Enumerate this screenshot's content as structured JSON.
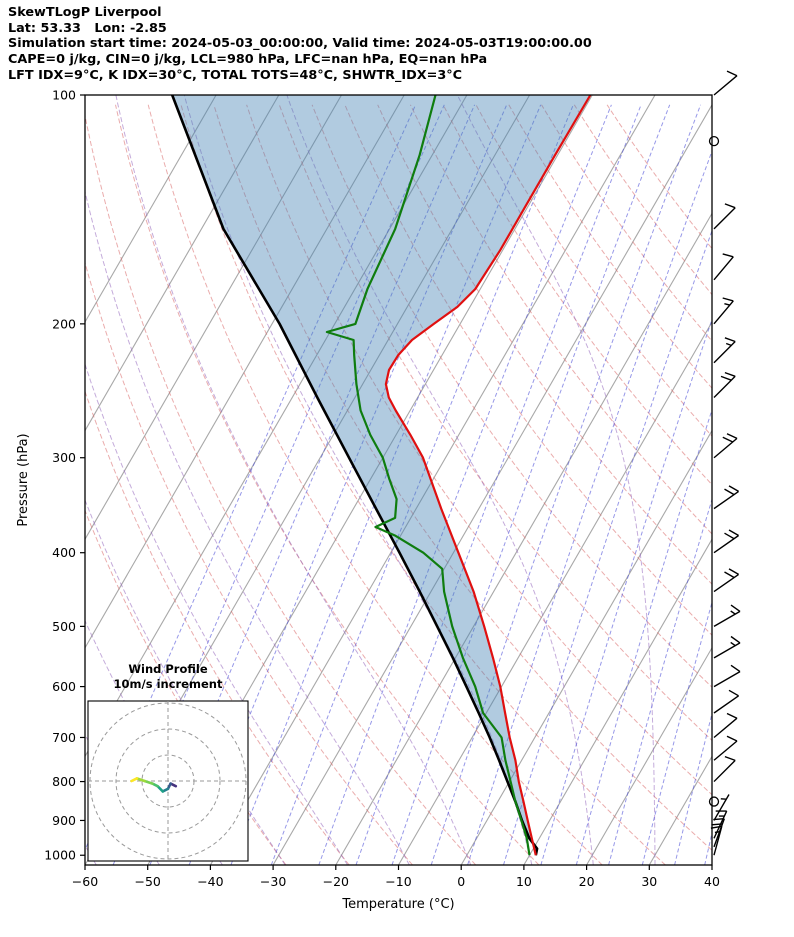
{
  "header": {
    "title": "SkewTLogP Liverpool",
    "location_line": "Lat: 53.33   Lon: -2.85",
    "time_line": "Simulation start time: 2024-05-03_00:00:00, Valid time: 2024-05-03T19:00:00.00",
    "indices_line1": "CAPE=0 j/kg, CIN=0 j/kg, LCL=980 hPa, LFC=nan hPa, EQ=nan hPa",
    "indices_line2": "LFT IDX=9°C, K IDX=30°C, TOTAL TOTS=48°C, SHWTR_IDX=3°C"
  },
  "chart_data": {
    "type": "line",
    "subtype": "skew-t-log-p",
    "xlabel": "Temperature (°C)",
    "ylabel": "Pressure (hPa)",
    "xlim": [
      -60,
      40
    ],
    "plim": [
      100,
      1030
    ],
    "skew_rotation_deg": 30,
    "x_ticks": [
      -60,
      -50,
      -40,
      -30,
      -20,
      -10,
      0,
      10,
      20,
      30,
      40
    ],
    "y_ticks": [
      100,
      200,
      300,
      400,
      500,
      600,
      700,
      800,
      900,
      1000
    ],
    "background_lines": {
      "isotherms": {
        "color": "#a8a8a8",
        "start": -110,
        "end": 40,
        "step": 10
      },
      "dry_adiabats": {
        "color": "#d96a6a",
        "start": -30,
        "end": 160,
        "step": 10
      },
      "moist_adiabats": {
        "color": "#9467bd",
        "values": [
          -60,
          -50,
          -40,
          -30,
          -20,
          -10,
          0,
          10,
          20,
          30
        ]
      },
      "mixing_ratio_lines": {
        "color": "#5254d9",
        "values_g_kg": [
          0.01,
          0.02,
          0.04,
          0.08,
          0.16,
          0.3,
          0.6,
          1,
          1.6,
          2.6,
          4,
          6,
          9,
          13,
          18,
          25,
          34,
          45
        ]
      }
    },
    "series": [
      {
        "name": "temperature",
        "label": "Temperature",
        "color": "#e01010",
        "width": 2.2,
        "pressure": [
          1000,
          950,
          900,
          850,
          800,
          750,
          700,
          650,
          600,
          550,
          500,
          450,
          400,
          350,
          300,
          280,
          260,
          250,
          240,
          230,
          220,
          210,
          200,
          190,
          180,
          160,
          140,
          120,
          100
        ],
        "values": [
          11.0,
          8.8,
          6.5,
          4.1,
          1.5,
          -1.0,
          -4.0,
          -7.0,
          -10.2,
          -14.0,
          -18.3,
          -23.2,
          -29.2,
          -36.0,
          -43.6,
          -47.7,
          -52.3,
          -54.6,
          -56.3,
          -57.1,
          -57.0,
          -56.2,
          -54.2,
          -52.0,
          -50.8,
          -50.4,
          -50.4,
          -50.4,
          -50.3
        ]
      },
      {
        "name": "dewpoint",
        "label": "Dewpoint",
        "color": "#0f7d0f",
        "width": 2.2,
        "pressure": [
          1000,
          950,
          900,
          850,
          800,
          750,
          700,
          650,
          600,
          550,
          500,
          450,
          420,
          400,
          380,
          370,
          360,
          340,
          320,
          300,
          280,
          260,
          240,
          220,
          210,
          205,
          200,
          180,
          150,
          120,
          100
        ],
        "values": [
          10.0,
          8.0,
          5.5,
          2.8,
          0.2,
          -2.6,
          -5.3,
          -10.5,
          -14.2,
          -18.8,
          -23.4,
          -27.9,
          -30.3,
          -34.8,
          -40.8,
          -44.8,
          -42.5,
          -44.0,
          -47.0,
          -50.0,
          -54.1,
          -57.9,
          -61.0,
          -64.0,
          -65.5,
          -70.5,
          -66.7,
          -68.0,
          -69.1,
          -72.0,
          -75.0
        ]
      },
      {
        "name": "parcel",
        "label": "Parcel profile",
        "color": "#000000",
        "width": 2.6,
        "pressure": [
          1000,
          980,
          950,
          900,
          850,
          800,
          750,
          700,
          650,
          600,
          550,
          500,
          450,
          400,
          350,
          300,
          250,
          200,
          150,
          100
        ],
        "values": [
          11.0,
          10.6,
          8.4,
          5.6,
          2.8,
          -0.3,
          -3.6,
          -7.2,
          -11.2,
          -15.6,
          -20.4,
          -25.8,
          -31.8,
          -38.6,
          -46.4,
          -55.4,
          -66.0,
          -78.8,
          -96.5,
          -117.0
        ]
      }
    ],
    "shading": {
      "between": [
        "parcel",
        "temperature"
      ],
      "color": "rgba(70,130,180,0.42)"
    },
    "wind_barbs": [
      {
        "p": 100,
        "speed_kt": 10,
        "dir_deg": 50
      },
      {
        "p": 115,
        "speed_kt": 0,
        "dir_deg": 0
      },
      {
        "p": 150,
        "speed_kt": 10,
        "dir_deg": 45
      },
      {
        "p": 175,
        "speed_kt": 12,
        "dir_deg": 40
      },
      {
        "p": 200,
        "speed_kt": 15,
        "dir_deg": 40
      },
      {
        "p": 225,
        "speed_kt": 15,
        "dir_deg": 45
      },
      {
        "p": 250,
        "speed_kt": 18,
        "dir_deg": 45
      },
      {
        "p": 300,
        "speed_kt": 20,
        "dir_deg": 50
      },
      {
        "p": 350,
        "speed_kt": 22,
        "dir_deg": 55
      },
      {
        "p": 400,
        "speed_kt": 20,
        "dir_deg": 55
      },
      {
        "p": 450,
        "speed_kt": 18,
        "dir_deg": 55
      },
      {
        "p": 500,
        "speed_kt": 15,
        "dir_deg": 60
      },
      {
        "p": 550,
        "speed_kt": 15,
        "dir_deg": 60
      },
      {
        "p": 600,
        "speed_kt": 12,
        "dir_deg": 60
      },
      {
        "p": 650,
        "speed_kt": 10,
        "dir_deg": 55
      },
      {
        "p": 700,
        "speed_kt": 12,
        "dir_deg": 50
      },
      {
        "p": 750,
        "speed_kt": 10,
        "dir_deg": 50
      },
      {
        "p": 800,
        "speed_kt": 8,
        "dir_deg": 45
      },
      {
        "p": 850,
        "speed_kt": 0,
        "dir_deg": 0
      },
      {
        "p": 900,
        "speed_kt": 5,
        "dir_deg": 30
      },
      {
        "p": 950,
        "speed_kt": 15,
        "dir_deg": 25
      },
      {
        "p": 975,
        "speed_kt": 18,
        "dir_deg": 20
      },
      {
        "p": 1000,
        "speed_kt": 15,
        "dir_deg": 15
      }
    ],
    "hodograph": {
      "title_line1": "Wind Profile",
      "title_line2": "10m/s increment",
      "ring_interval_ms": 10,
      "rings_max_ms": 30,
      "trace": [
        {
          "u": 3,
          "v": -2,
          "color": "#440154"
        },
        {
          "u": 1,
          "v": -1,
          "color": "#46327e"
        },
        {
          "u": 0,
          "v": -3,
          "color": "#375c8d"
        },
        {
          "u": -2,
          "v": -4,
          "color": "#27808e"
        },
        {
          "u": -4,
          "v": -2,
          "color": "#1fa187"
        },
        {
          "u": -6,
          "v": -1,
          "color": "#4ac16d"
        },
        {
          "u": -9,
          "v": 0,
          "color": "#7ad151"
        },
        {
          "u": -12,
          "v": 1,
          "color": "#a0da39"
        },
        {
          "u": -14,
          "v": 0,
          "color": "#fde725"
        }
      ]
    }
  }
}
